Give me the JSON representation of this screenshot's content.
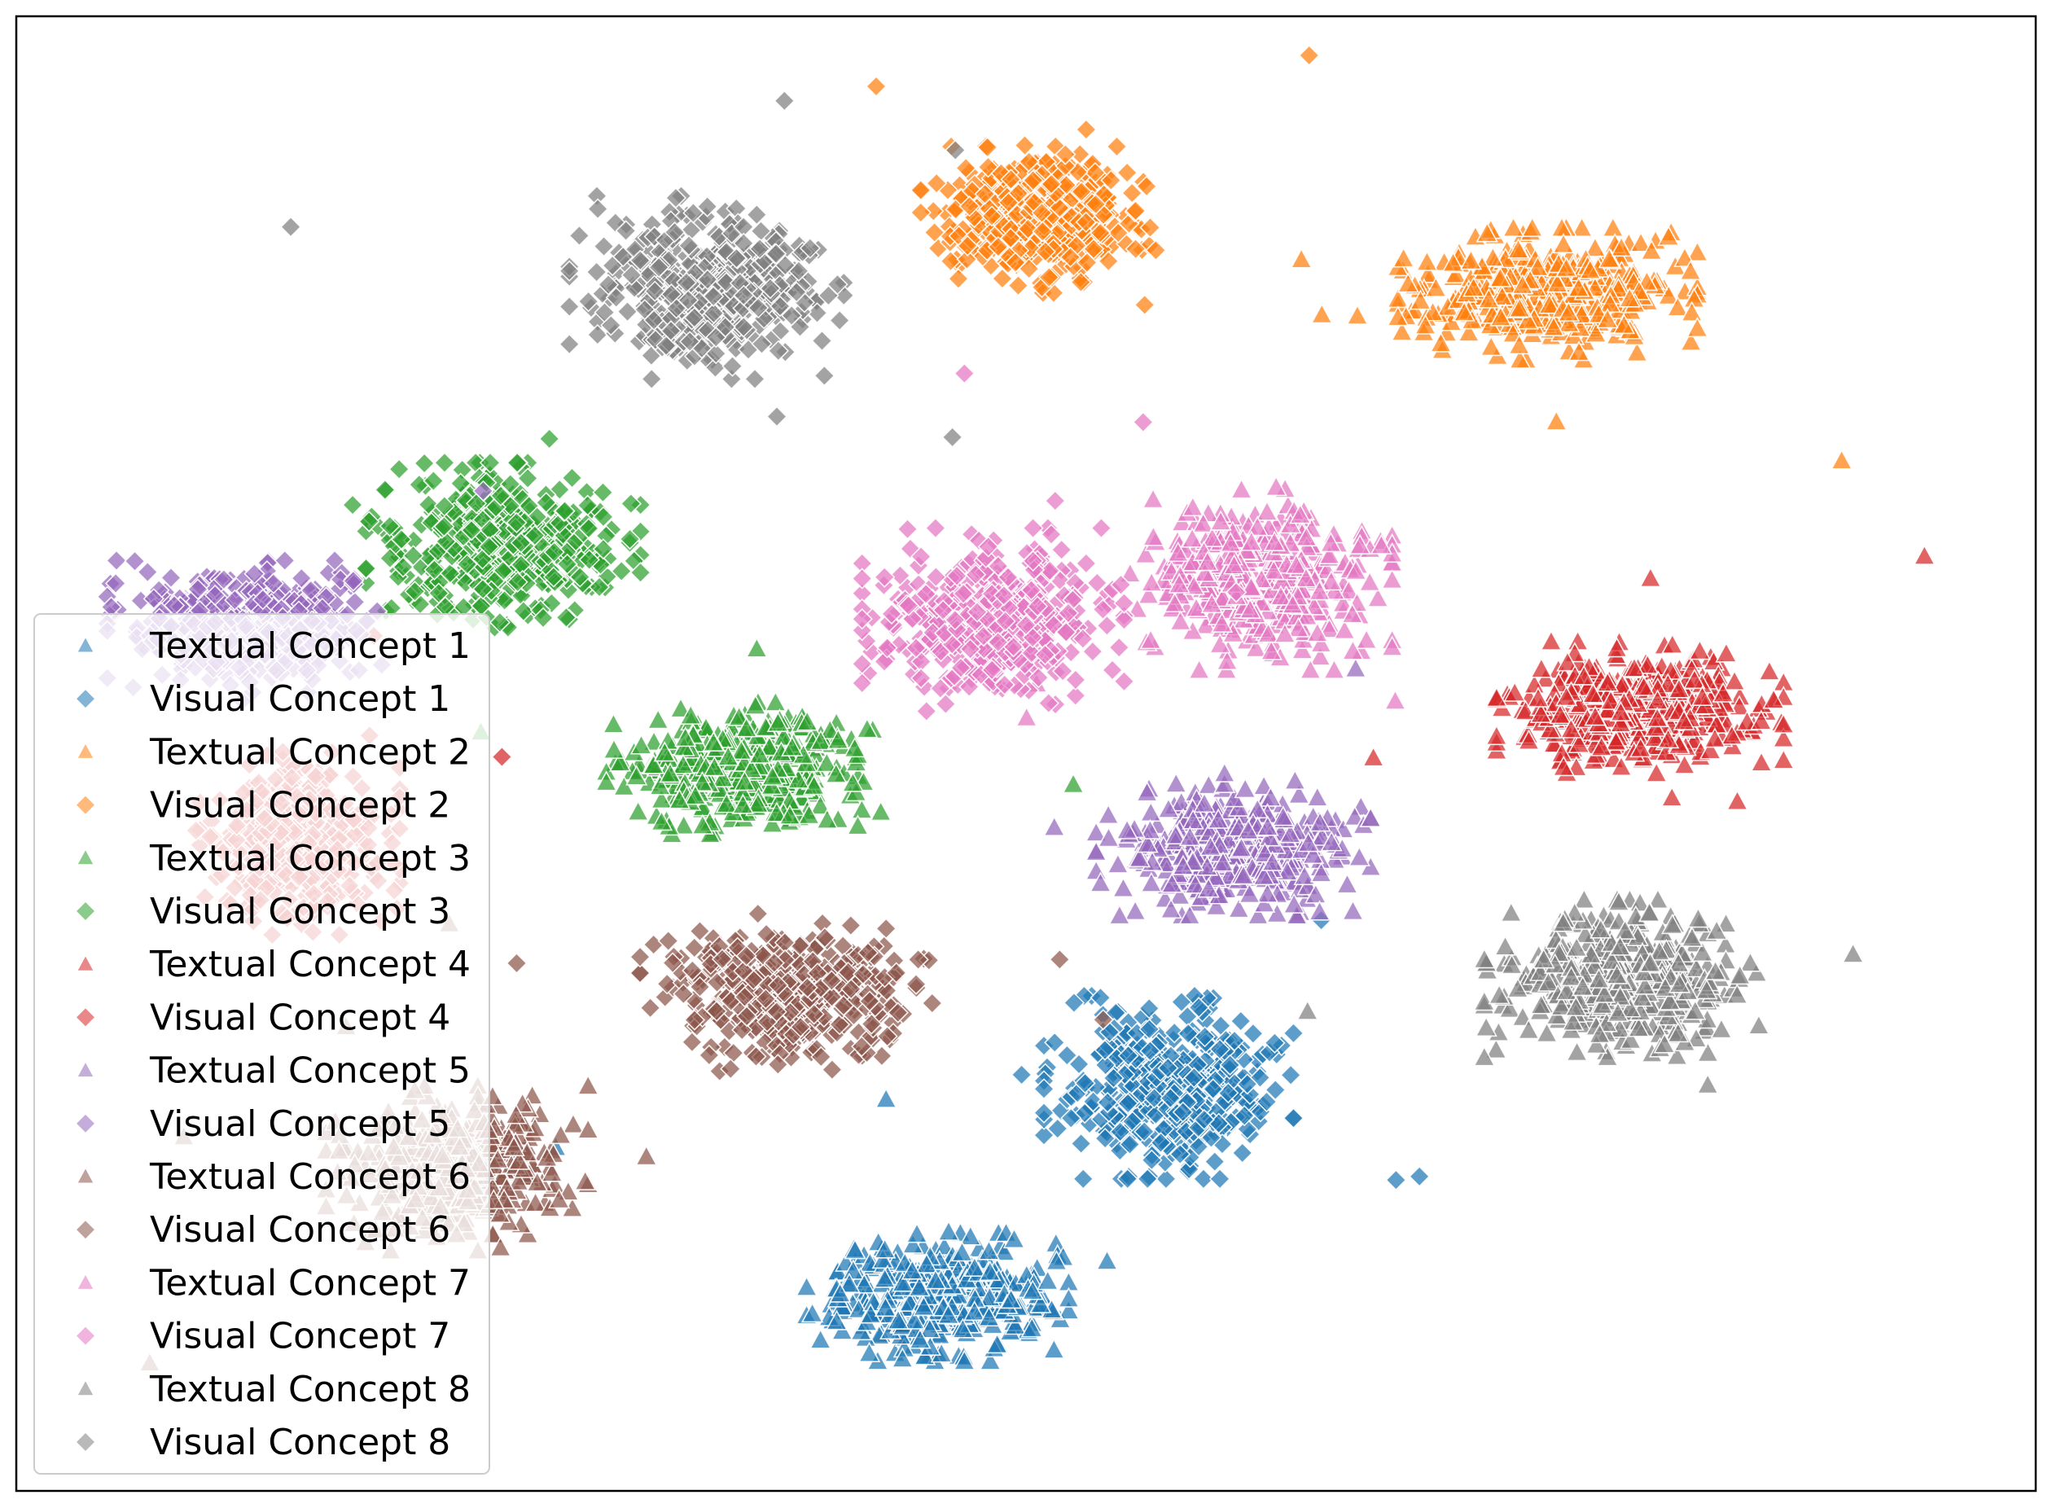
{
  "chart_data": {
    "type": "scatter",
    "title": "",
    "xlabel": "",
    "ylabel": "",
    "xlim": [
      -100,
      100
    ],
    "ylim": [
      -100,
      100
    ],
    "show_axes": false,
    "grid": false,
    "legend_position": "lower-left",
    "series": [
      {
        "name": "Textual Concept 1",
        "marker": "triangle",
        "color": "#1f77b4",
        "center": [
          -10.0,
          -80.0
        ],
        "spread": [
          10.5,
          7.0
        ],
        "count": 430
      },
      {
        "name": "Visual Concept 1",
        "marker": "diamond",
        "color": "#1f77b4",
        "center": [
          15.0,
          -49.0
        ],
        "spread": [
          10.0,
          10.0
        ],
        "count": 430
      },
      {
        "name": "Textual Concept 2",
        "marker": "triangle",
        "color": "#ff7f0e",
        "center": [
          56.0,
          68.0
        ],
        "spread": [
          12.0,
          7.2
        ],
        "count": 430
      },
      {
        "name": "Visual Concept 2",
        "marker": "diamond",
        "color": "#ff7f0e",
        "center": [
          1.0,
          79.0
        ],
        "spread": [
          9.5,
          8.0
        ],
        "count": 430
      },
      {
        "name": "Textual Concept 3",
        "marker": "triangle",
        "color": "#2ca02c",
        "center": [
          -31.0,
          -2.0
        ],
        "spread": [
          11.0,
          7.2
        ],
        "count": 430
      },
      {
        "name": "Visual Concept 3",
        "marker": "diamond",
        "color": "#2ca02c",
        "center": [
          -57.0,
          31.0
        ],
        "spread": [
          11.0,
          9.0
        ],
        "count": 430
      },
      {
        "name": "Textual Concept 4",
        "marker": "triangle",
        "color": "#d62728",
        "center": [
          66.0,
          7.0
        ],
        "spread": [
          11.5,
          7.2
        ],
        "count": 430
      },
      {
        "name": "Visual Concept 4",
        "marker": "diamond",
        "color": "#d62728",
        "center": [
          -79.0,
          -13.0
        ],
        "spread": [
          8.0,
          10.0
        ],
        "count": 430
      },
      {
        "name": "Textual Concept 5",
        "marker": "triangle",
        "color": "#9467bd",
        "center": [
          22.0,
          -14.0
        ],
        "spread": [
          11.0,
          7.2
        ],
        "count": 430
      },
      {
        "name": "Visual Concept 5",
        "marker": "diamond",
        "color": "#9467bd",
        "center": [
          -85.0,
          19.0
        ],
        "spread": [
          11.0,
          7.2
        ],
        "count": 430
      },
      {
        "name": "Textual Concept 6",
        "marker": "triangle",
        "color": "#8c564b",
        "center": [
          -62.0,
          -61.0
        ],
        "spread": [
          10.5,
          9.0
        ],
        "count": 430
      },
      {
        "name": "Visual Concept 6",
        "marker": "diamond",
        "color": "#8c564b",
        "center": [
          -26.0,
          -35.0
        ],
        "spread": [
          12.0,
          8.6
        ],
        "count": 430
      },
      {
        "name": "Textual Concept 7",
        "marker": "triangle",
        "color": "#e377c2",
        "center": [
          25.0,
          26.0
        ],
        "spread": [
          10.5,
          10.0
        ],
        "count": 430
      },
      {
        "name": "Visual Concept 7",
        "marker": "diamond",
        "color": "#e377c2",
        "center": [
          -4.0,
          20.0
        ],
        "spread": [
          10.5,
          10.0
        ],
        "count": 430
      },
      {
        "name": "Textual Concept 8",
        "marker": "triangle",
        "color": "#7f7f7f",
        "center": [
          64.0,
          -33.0
        ],
        "spread": [
          11.0,
          8.6
        ],
        "count": 430
      },
      {
        "name": "Visual Concept 8",
        "marker": "diamond",
        "color": "#7f7f7f",
        "center": [
          -35.0,
          69.0
        ],
        "spread": [
          11.0,
          10.0
        ],
        "count": 430
      }
    ]
  }
}
